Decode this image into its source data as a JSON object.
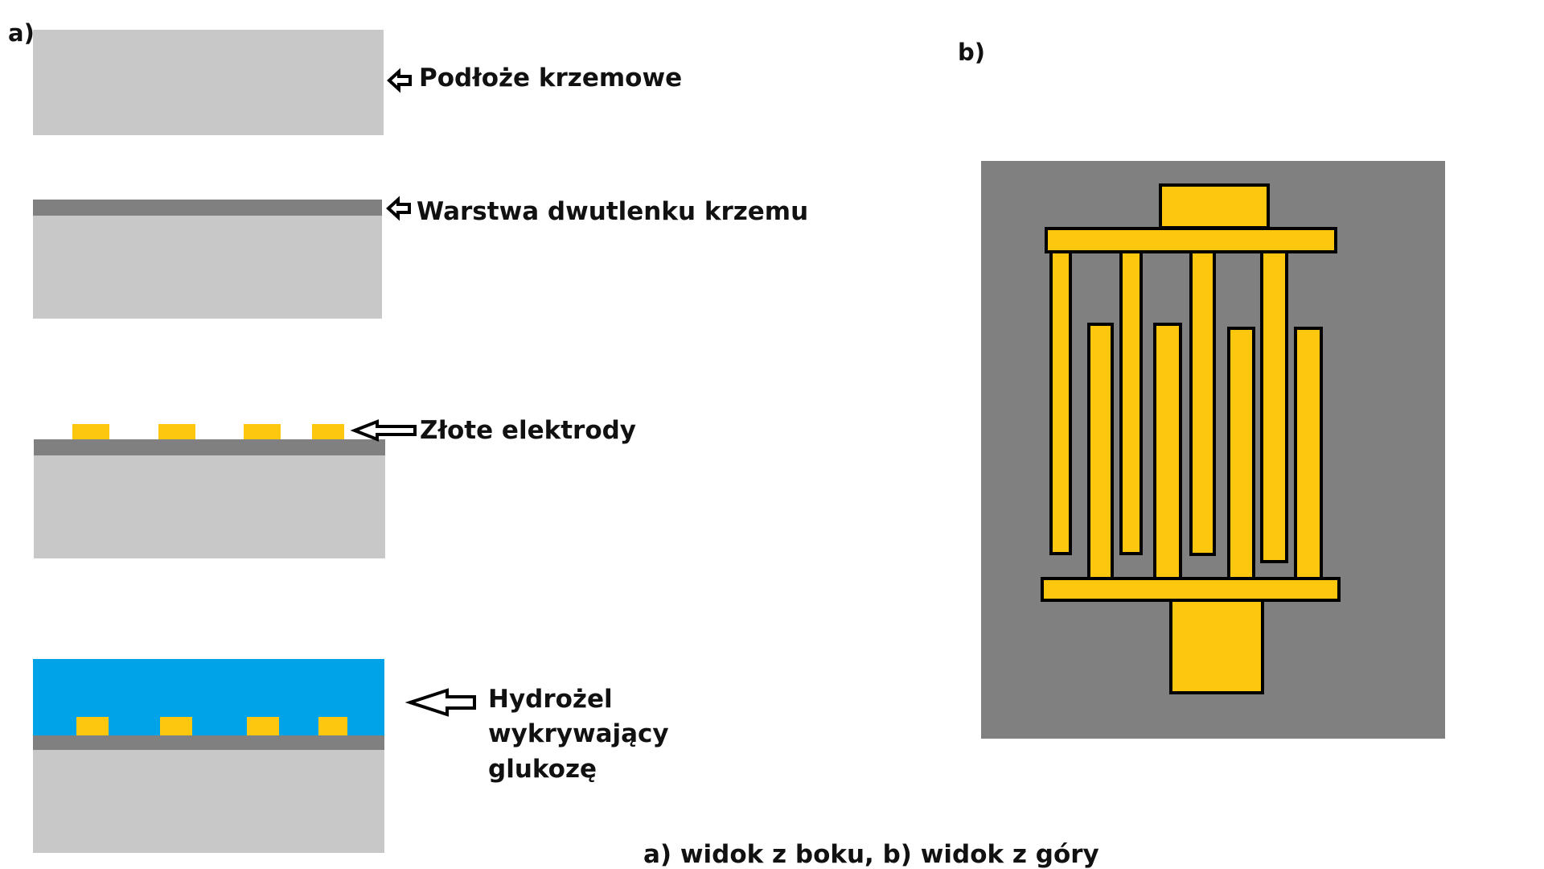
{
  "labels": {
    "panel_a": "a)",
    "panel_b": "b)",
    "caption": "a) widok z boku, b) widok z góry"
  },
  "side_view": {
    "substrate": "Podłoże krzemowe",
    "oxide_layer": "Warstwa dwutlenku krzemu",
    "gold_electrodes": "Złote elektrody",
    "hydrogel_lines": [
      "Hydrożel",
      "wykrywający",
      "glukozę"
    ]
  },
  "colors": {
    "silicon": "#c8c8c8",
    "oxide": "#808080",
    "gold": "#fec70f",
    "hydrogel": "#00a2e8",
    "top_view_background": "#808080",
    "outline": "#000000"
  }
}
